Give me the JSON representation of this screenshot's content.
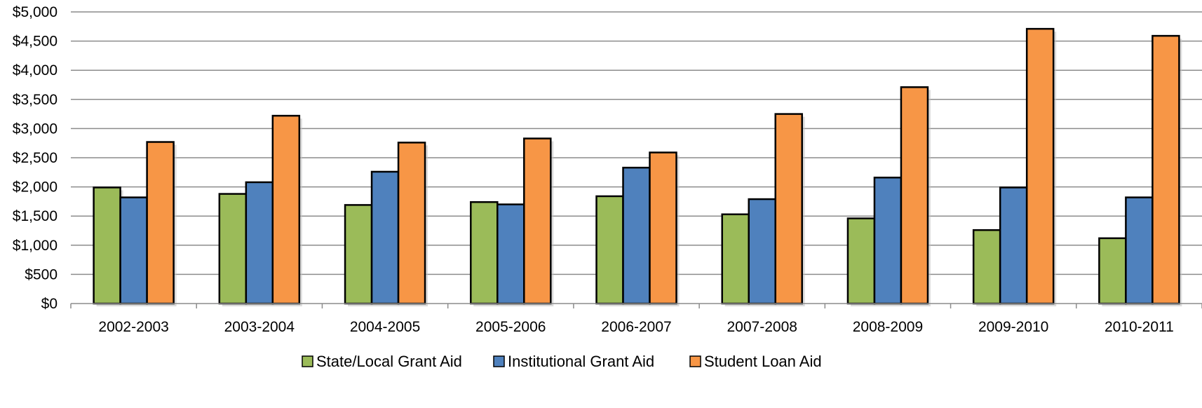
{
  "chart_data": {
    "type": "bar",
    "title": "",
    "xlabel": "",
    "ylabel": "",
    "ylim": [
      0,
      5000
    ],
    "yticks": [
      0,
      500,
      1000,
      1500,
      2000,
      2500,
      3000,
      3500,
      4000,
      4500,
      5000
    ],
    "ytick_labels": [
      "$0",
      "$500",
      "$1,000",
      "$1,500",
      "$2,000",
      "$2,500",
      "$3,000",
      "$3,500",
      "$4,000",
      "$4,500",
      "$5,000"
    ],
    "grid": true,
    "legend_position": "bottom",
    "categories": [
      "2002-2003",
      "2003-2004",
      "2004-2005",
      "2005-2006",
      "2006-2007",
      "2007-2008",
      "2008-2009",
      "2009-2010",
      "2010-2011"
    ],
    "series": [
      {
        "name": "State/Local Grant Aid",
        "color": "#9BBB59",
        "values": [
          1990,
          1880,
          1690,
          1740,
          1840,
          1530,
          1460,
          1260,
          1120
        ]
      },
      {
        "name": "Institutional Grant Aid",
        "color": "#4F81BD",
        "values": [
          1820,
          2080,
          2260,
          1700,
          2330,
          1790,
          2160,
          1990,
          1820
        ]
      },
      {
        "name": "Student Loan Aid",
        "color": "#F79646",
        "values": [
          2770,
          3220,
          2760,
          2830,
          2590,
          3250,
          3710,
          4710,
          4590
        ]
      }
    ]
  }
}
